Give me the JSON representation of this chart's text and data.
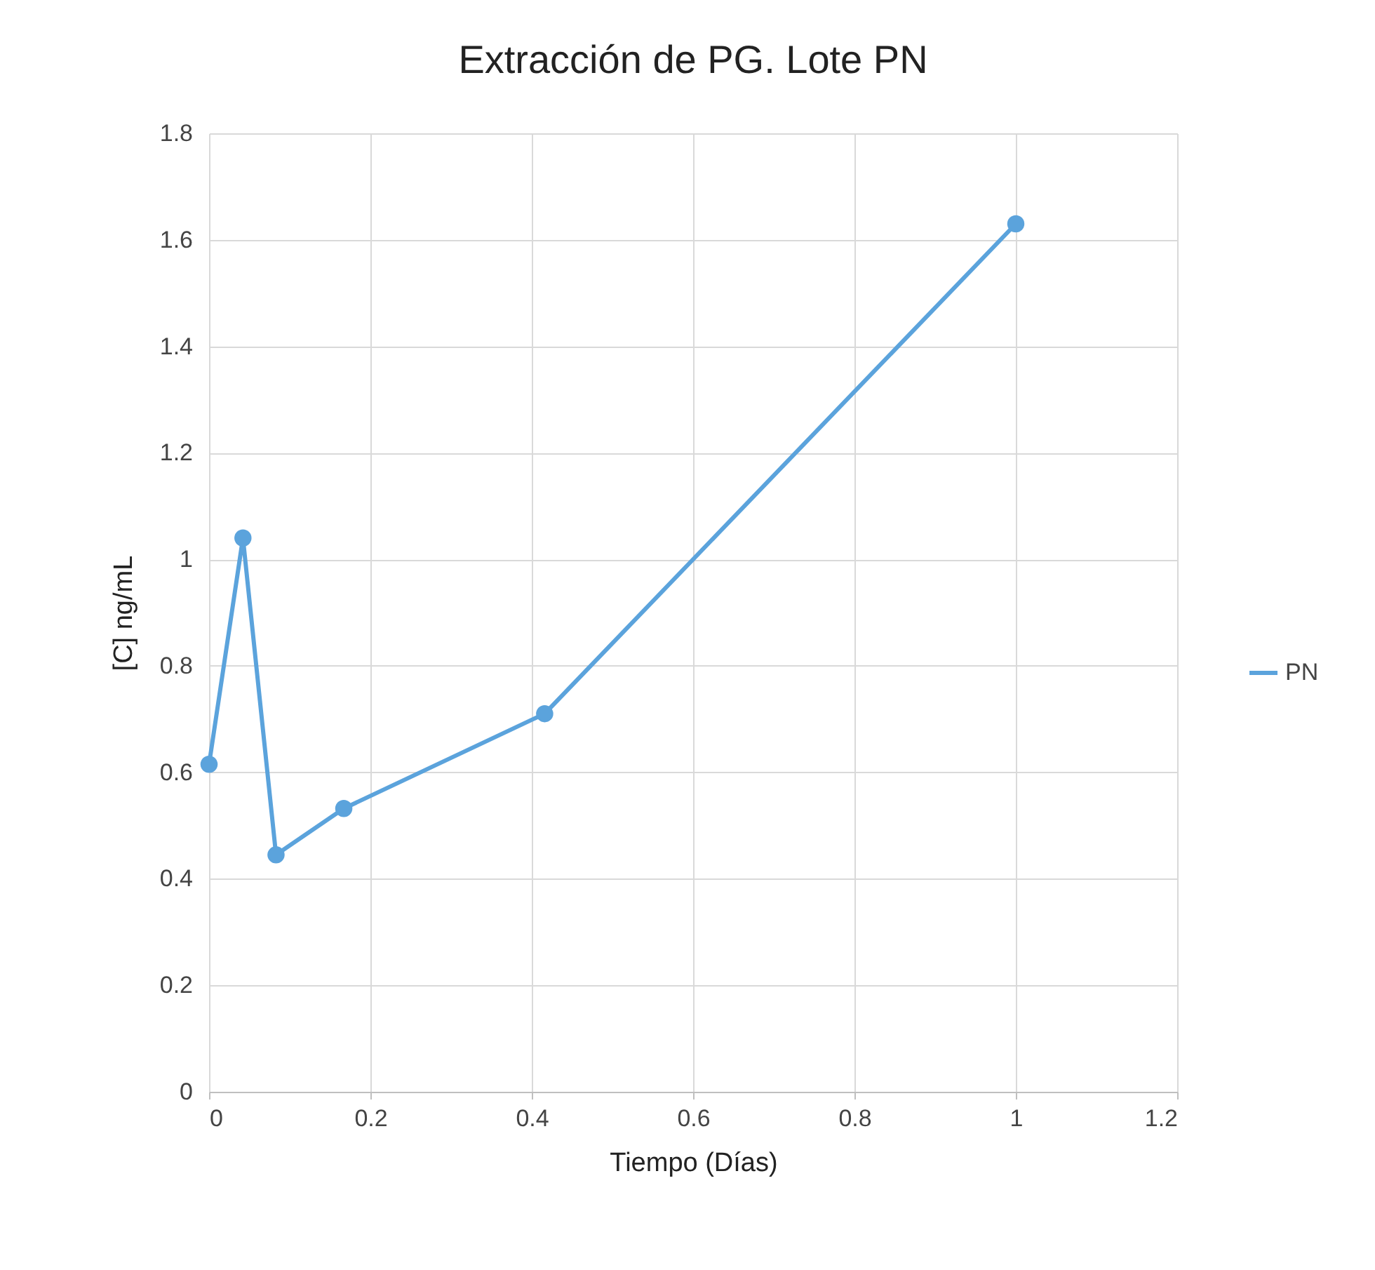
{
  "chart_data": {
    "type": "line",
    "title": "Extracción de PG. Lote PN",
    "xlabel": "Tiempo (Días)",
    "ylabel": "[C] ng/mL",
    "x": [
      0,
      0.042,
      0.083,
      0.167,
      0.416,
      1
    ],
    "series": [
      {
        "name": "PN",
        "color": "#5ba3dc",
        "values": [
          0.615,
          1.04,
          0.445,
          0.532,
          0.71,
          1.63
        ]
      }
    ],
    "xlim": [
      0,
      1.2
    ],
    "xticks": [
      0,
      0.2,
      0.4,
      0.6,
      0.8,
      1,
      1.2
    ],
    "ylim": [
      0,
      1.8
    ],
    "yticks": [
      0,
      0.2,
      0.4,
      0.6,
      0.8,
      1,
      1.2,
      1.4,
      1.6,
      1.8
    ],
    "grid": true,
    "legend": "right",
    "marker": "circle",
    "line_style": "solid"
  }
}
